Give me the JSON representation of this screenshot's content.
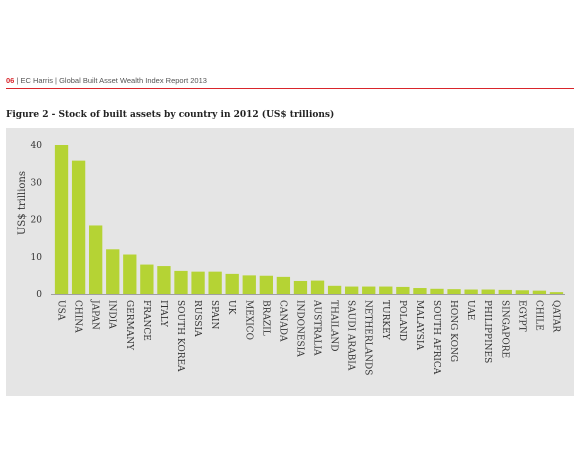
{
  "header": {
    "page_number": "06",
    "text": " | EC Harris | Global Built Asset Wealth Index Report 2013"
  },
  "figure_title": "Figure 2 - Stock of built assets by country in 2012 (US$ trillions)",
  "colors": {
    "bar": "#b5d334",
    "panel": "#e5e5e5",
    "rule": "#d9252b",
    "axis": "#888888"
  },
  "chart_data": {
    "type": "bar",
    "title": "Figure 2 - Stock of built assets by country in 2012 (US$ trillions)",
    "xlabel": "",
    "ylabel": "US$ trillions",
    "ylim": [
      0,
      40
    ],
    "yticks": [
      0,
      10,
      20,
      30,
      40
    ],
    "grid": false,
    "categories": [
      "USA",
      "CHINA",
      "JAPAN",
      "INDIA",
      "GERMANY",
      "FRANCE",
      "ITALY",
      "SOUTH KOREA",
      "RUSSIA",
      "SPAIN",
      "UK",
      "MEXICO",
      "BRAZIL",
      "CANADA",
      "INDONESIA",
      "AUSTRALIA",
      "THAILAND",
      "SAUDI ARABIA",
      "NETHERLANDS",
      "TURKEY",
      "POLAND",
      "MALAYSIA",
      "SOUTH AFRICA",
      "HONG KONG",
      "UAE",
      "PHILIPPINES",
      "SINGAPORE",
      "EGYPT",
      "CHILE",
      "QATAR"
    ],
    "values": [
      40,
      35.8,
      18.4,
      12,
      10.6,
      7.9,
      7.5,
      6.2,
      6,
      6,
      5.4,
      5,
      4.9,
      4.6,
      3.5,
      3.6,
      2.2,
      2,
      2,
      2,
      1.9,
      1.6,
      1.4,
      1.3,
      1.2,
      1.2,
      1.1,
      1,
      0.9,
      0.5
    ]
  }
}
